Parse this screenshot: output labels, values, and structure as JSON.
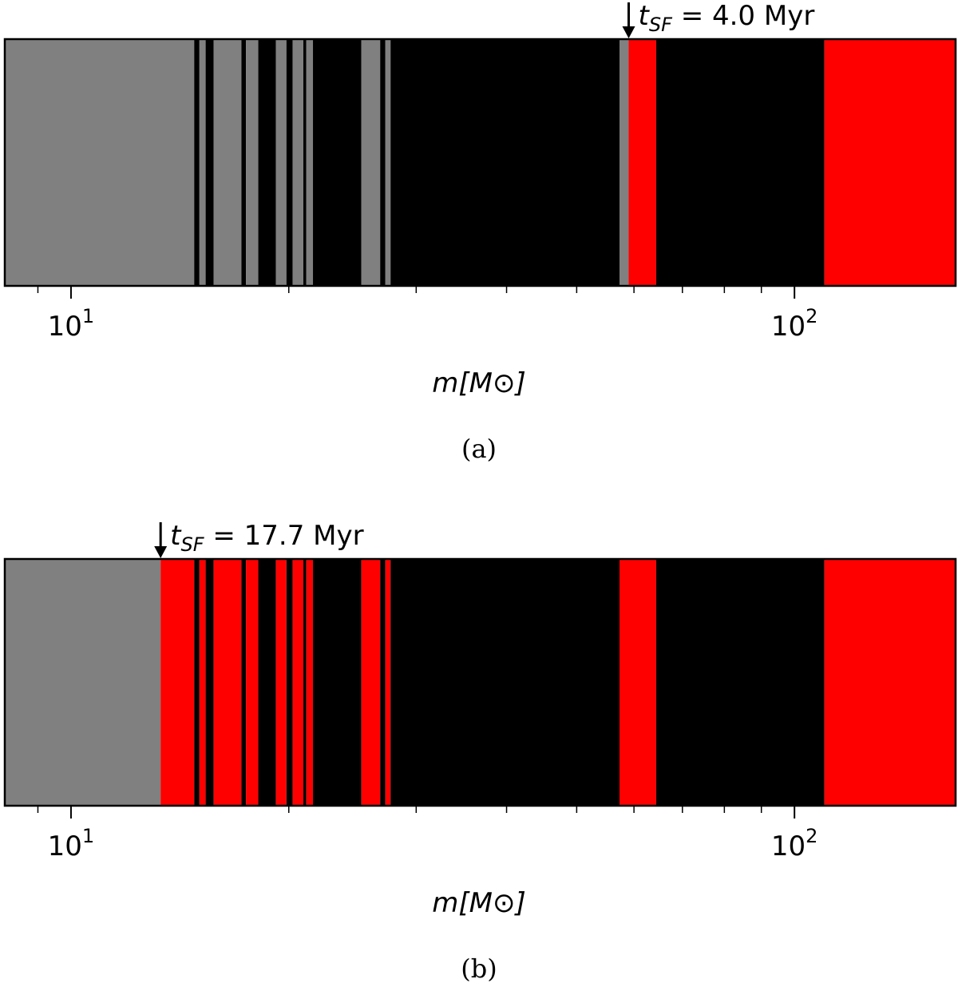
{
  "chart_data": [
    {
      "type": "bar",
      "panel_label": "(a)",
      "xlabel": "m[M⊙]",
      "xscale": "log",
      "xlim": [
        8.1,
        167
      ],
      "major_ticks": [
        {
          "value": 10,
          "label_base": "10",
          "label_exp": "1"
        },
        {
          "value": 100,
          "label_base": "10",
          "label_exp": "2"
        }
      ],
      "minor_ticks": [
        9,
        20,
        30,
        40,
        50,
        60,
        70,
        80,
        90
      ],
      "colors": {
        "gray": "#808080",
        "black": "#000000",
        "red": "#ff0000"
      },
      "annotation": {
        "value": 59.0,
        "prefix": "t",
        "subscript": "SF",
        "text": " = 4.0 Myr"
      },
      "segments": [
        {
          "from": 8.1,
          "to": 14.8,
          "color": "gray"
        },
        {
          "from": 14.8,
          "to": 15.05,
          "color": "black"
        },
        {
          "from": 15.05,
          "to": 15.35,
          "color": "gray"
        },
        {
          "from": 15.35,
          "to": 15.75,
          "color": "black"
        },
        {
          "from": 15.75,
          "to": 17.2,
          "color": "gray"
        },
        {
          "from": 17.2,
          "to": 17.45,
          "color": "black"
        },
        {
          "from": 17.45,
          "to": 18.15,
          "color": "gray"
        },
        {
          "from": 18.15,
          "to": 19.2,
          "color": "black"
        },
        {
          "from": 19.2,
          "to": 19.85,
          "color": "gray"
        },
        {
          "from": 19.85,
          "to": 20.25,
          "color": "black"
        },
        {
          "from": 20.25,
          "to": 20.95,
          "color": "gray"
        },
        {
          "from": 20.95,
          "to": 21.15,
          "color": "black"
        },
        {
          "from": 21.15,
          "to": 21.6,
          "color": "gray"
        },
        {
          "from": 21.6,
          "to": 25.2,
          "color": "black"
        },
        {
          "from": 25.2,
          "to": 26.75,
          "color": "gray"
        },
        {
          "from": 26.75,
          "to": 27.2,
          "color": "black"
        },
        {
          "from": 27.2,
          "to": 27.65,
          "color": "gray"
        },
        {
          "from": 27.65,
          "to": 57.3,
          "color": "black"
        },
        {
          "from": 57.3,
          "to": 59.0,
          "color": "gray"
        },
        {
          "from": 59.0,
          "to": 64.4,
          "color": "red"
        },
        {
          "from": 64.4,
          "to": 110.0,
          "color": "black"
        },
        {
          "from": 110.0,
          "to": 167.0,
          "color": "red"
        }
      ]
    },
    {
      "type": "bar",
      "panel_label": "(b)",
      "xlabel": "m[M⊙]",
      "xscale": "log",
      "xlim": [
        8.1,
        167
      ],
      "major_ticks": [
        {
          "value": 10,
          "label_base": "10",
          "label_exp": "1"
        },
        {
          "value": 100,
          "label_base": "10",
          "label_exp": "2"
        }
      ],
      "minor_ticks": [
        9,
        20,
        30,
        40,
        50,
        60,
        70,
        80,
        90
      ],
      "colors": {
        "gray": "#808080",
        "black": "#000000",
        "red": "#ff0000"
      },
      "annotation": {
        "value": 13.3,
        "prefix": "t",
        "subscript": "SF",
        "text": " = 17.7 Myr"
      },
      "segments": [
        {
          "from": 8.1,
          "to": 13.3,
          "color": "gray"
        },
        {
          "from": 13.3,
          "to": 14.8,
          "color": "red"
        },
        {
          "from": 14.8,
          "to": 15.05,
          "color": "black"
        },
        {
          "from": 15.05,
          "to": 15.35,
          "color": "red"
        },
        {
          "from": 15.35,
          "to": 15.75,
          "color": "black"
        },
        {
          "from": 15.75,
          "to": 17.2,
          "color": "red"
        },
        {
          "from": 17.2,
          "to": 17.45,
          "color": "black"
        },
        {
          "from": 17.45,
          "to": 18.15,
          "color": "red"
        },
        {
          "from": 18.15,
          "to": 19.2,
          "color": "black"
        },
        {
          "from": 19.2,
          "to": 19.85,
          "color": "red"
        },
        {
          "from": 19.85,
          "to": 20.25,
          "color": "black"
        },
        {
          "from": 20.25,
          "to": 20.95,
          "color": "red"
        },
        {
          "from": 20.95,
          "to": 21.15,
          "color": "black"
        },
        {
          "from": 21.15,
          "to": 21.6,
          "color": "red"
        },
        {
          "from": 21.6,
          "to": 25.2,
          "color": "black"
        },
        {
          "from": 25.2,
          "to": 26.75,
          "color": "red"
        },
        {
          "from": 26.75,
          "to": 27.2,
          "color": "black"
        },
        {
          "from": 27.2,
          "to": 27.65,
          "color": "red"
        },
        {
          "from": 27.65,
          "to": 57.3,
          "color": "black"
        },
        {
          "from": 57.3,
          "to": 64.4,
          "color": "red"
        },
        {
          "from": 64.4,
          "to": 110.0,
          "color": "black"
        },
        {
          "from": 110.0,
          "to": 167.0,
          "color": "red"
        }
      ]
    }
  ]
}
